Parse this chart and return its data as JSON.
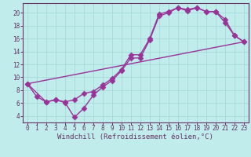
{
  "bg_color": "#c0ecec",
  "grid_color": "#a8dada",
  "line_color": "#993399",
  "spine_color": "#663366",
  "tick_color": "#663366",
  "xlabel": "Windchill (Refroidissement éolien,°C)",
  "xlim": [
    -0.5,
    23.5
  ],
  "ylim": [
    3.0,
    21.5
  ],
  "xticks": [
    0,
    1,
    2,
    3,
    4,
    5,
    6,
    7,
    8,
    9,
    10,
    11,
    12,
    13,
    14,
    15,
    16,
    17,
    18,
    19,
    20,
    21,
    22,
    23
  ],
  "yticks": [
    4,
    6,
    8,
    10,
    12,
    14,
    16,
    18,
    20
  ],
  "curve1_x": [
    0,
    1,
    2,
    3,
    4,
    5,
    6,
    7,
    8,
    9,
    10,
    11,
    12,
    13,
    14,
    15,
    16,
    17,
    18,
    19,
    20,
    21,
    22,
    23
  ],
  "curve1_y": [
    9.0,
    7.0,
    6.2,
    6.5,
    6.1,
    3.8,
    5.2,
    7.2,
    8.5,
    9.5,
    11.0,
    13.0,
    13.0,
    15.8,
    19.5,
    20.0,
    20.8,
    20.5,
    20.8,
    20.2,
    20.2,
    18.5,
    16.5,
    15.5
  ],
  "curve2_x": [
    0,
    2,
    3,
    4,
    5,
    6,
    7,
    8,
    9,
    10,
    11,
    12,
    13,
    14,
    15,
    16,
    17,
    18,
    19,
    20,
    21,
    22,
    23
  ],
  "curve2_y": [
    9.0,
    6.2,
    6.5,
    6.2,
    6.5,
    7.5,
    7.8,
    8.8,
    9.8,
    11.2,
    13.5,
    13.5,
    16.0,
    19.8,
    20.2,
    20.8,
    20.3,
    20.8,
    20.2,
    20.2,
    19.0,
    16.5,
    15.5
  ],
  "curve3_x": [
    0,
    23
  ],
  "curve3_y": [
    9.0,
    15.5
  ],
  "xlabel_fontsize": 6.5,
  "tick_fontsize": 5.5,
  "linewidth": 1.0,
  "markersize": 3.5
}
